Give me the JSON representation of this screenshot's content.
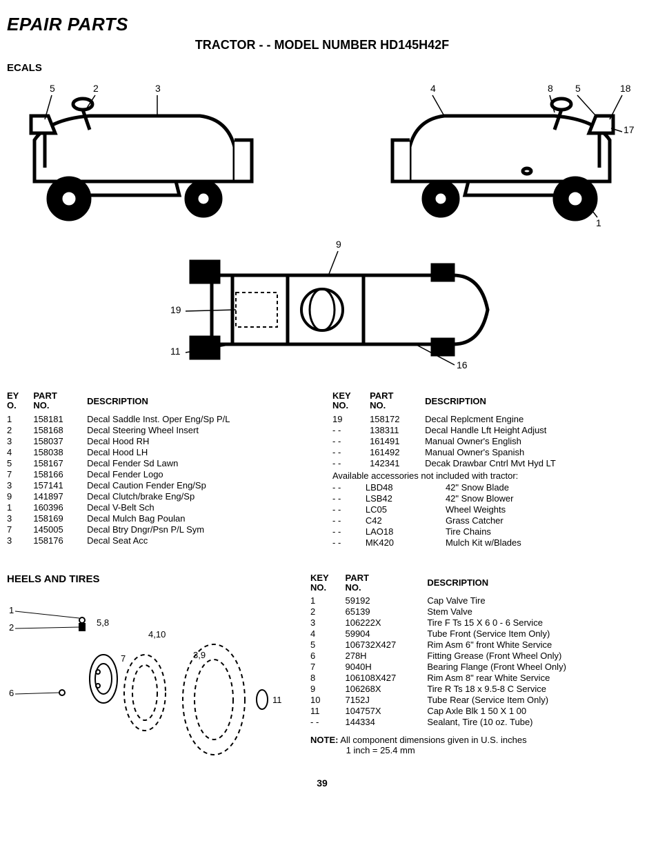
{
  "page": {
    "title": "EPAIR PARTS",
    "subtitle": "TRACTOR - - MODEL NUMBER HD145H42F",
    "page_number": "39"
  },
  "decals": {
    "section_title": "ECALS",
    "header": {
      "key": "EY\nO.",
      "part": "PART\nNO.",
      "desc": "DESCRIPTION"
    },
    "left_rows": [
      {
        "key": "1",
        "part": "158181",
        "desc": "Decal Saddle Inst. Oper Eng/Sp P/L"
      },
      {
        "key": "2",
        "part": "158168",
        "desc": "Decal Steering Wheel Insert"
      },
      {
        "key": "3",
        "part": "158037",
        "desc": "Decal Hood RH"
      },
      {
        "key": "4",
        "part": "158038",
        "desc": "Decal Hood LH"
      },
      {
        "key": "5",
        "part": "158167",
        "desc": "Decal Fender Sd Lawn"
      },
      {
        "key": "7",
        "part": "158166",
        "desc": "Decal Fender Logo"
      },
      {
        "key": "3",
        "part": "157141",
        "desc": "Decal Caution Fender Eng/Sp"
      },
      {
        "key": "9",
        "part": "141897",
        "desc": "Decal Clutch/brake Eng/Sp"
      },
      {
        "key": "1",
        "part": "160396",
        "desc": "Decal V-Belt Sch"
      },
      {
        "key": "3",
        "part": "158169",
        "desc": "Decal Mulch Bag Poulan"
      },
      {
        "key": "7",
        "part": "145005",
        "desc": "Decal Btry Dngr/Psn P/L Sym"
      },
      {
        "key": "3",
        "part": "158176",
        "desc": "Decal Seat Acc"
      }
    ],
    "right_header": {
      "key": "KEY\nNO.",
      "part": "PART\nNO.",
      "desc": "DESCRIPTION"
    },
    "right_rows": [
      {
        "key": "19",
        "part": "158172",
        "desc": "Decal Replcment Engine"
      },
      {
        "key": "- -",
        "part": "138311",
        "desc": "Decal Handle Lft Height Adjust"
      },
      {
        "key": "- -",
        "part": "161491",
        "desc": "Manual Owner's English"
      },
      {
        "key": "- -",
        "part": "161492",
        "desc": "Manual Owner's Spanish"
      },
      {
        "key": "- -",
        "part": "142341",
        "desc": "Decak Drawbar Cntrl Mvt Hyd LT"
      }
    ],
    "accessories_note": "Available accessories not included with tractor:",
    "accessory_rows": [
      {
        "key": "- -",
        "part": "LBD48",
        "desc": "42\" Snow Blade"
      },
      {
        "key": "- -",
        "part": "LSB42",
        "desc": "42\" Snow Blower"
      },
      {
        "key": "- -",
        "part": "LC05",
        "desc": "Wheel Weights"
      },
      {
        "key": "- -",
        "part": "C42",
        "desc": "Grass Catcher"
      },
      {
        "key": "- -",
        "part": "LAO18",
        "desc": "Tire Chains"
      },
      {
        "key": "- -",
        "part": "MK420",
        "desc": "Mulch Kit w/Blades"
      }
    ],
    "diagram_labels_left": {
      "l5": "5",
      "l2": "2",
      "l3": "3"
    },
    "diagram_labels_right": {
      "l4": "4",
      "l8": "8",
      "l5": "5",
      "l18": "18",
      "l17": "17",
      "l1": "1"
    },
    "diagram_labels_top": {
      "l9": "9",
      "l19": "19",
      "l11": "11",
      "l16": "16"
    }
  },
  "wheels": {
    "section_title": "HEELS AND TIRES",
    "header": {
      "key": "KEY\nNO.",
      "part": "PART\nNO.",
      "desc": "DESCRIPTION"
    },
    "rows": [
      {
        "key": "1",
        "part": "59192",
        "desc": "Cap Valve Tire"
      },
      {
        "key": "2",
        "part": "65139",
        "desc": "Stem Valve"
      },
      {
        "key": "3",
        "part": "106222X",
        "desc": "Tire F Ts 15 X 6 0 - 6 Service"
      },
      {
        "key": "4",
        "part": "59904",
        "desc": "Tube Front (Service Item Only)"
      },
      {
        "key": "5",
        "part": "106732X427",
        "desc": "Rim Asm 6\" front White Service"
      },
      {
        "key": "6",
        "part": "278H",
        "desc": "Fitting Grease (Front Wheel Only)"
      },
      {
        "key": "7",
        "part": "9040H",
        "desc": "Bearing Flange (Front Wheel Only)"
      },
      {
        "key": "8",
        "part": "106108X427",
        "desc": "Rim Asm 8\" rear White Service"
      },
      {
        "key": "9",
        "part": "106268X",
        "desc": "Tire R Ts 18 x 9.5-8 C Service"
      },
      {
        "key": "10",
        "part": "7152J",
        "desc": "Tube Rear (Service Item Only)"
      },
      {
        "key": "11",
        "part": "104757X",
        "desc": "Cap Axle Blk 1 50 X 1 00"
      },
      {
        "key": "- -",
        "part": "144334",
        "desc": "Sealant, Tire (10 oz. Tube)"
      }
    ],
    "diagram_labels": {
      "l1": "1",
      "l2": "2",
      "l58": "5,8",
      "l410": "4,10",
      "l7": "7",
      "l39": "3,9",
      "l6": "6",
      "l11": "11"
    },
    "note_label": "NOTE:",
    "note_text1": "All component dimensions given in U.S. inches",
    "note_text2": "1 inch = 25.4 mm"
  }
}
